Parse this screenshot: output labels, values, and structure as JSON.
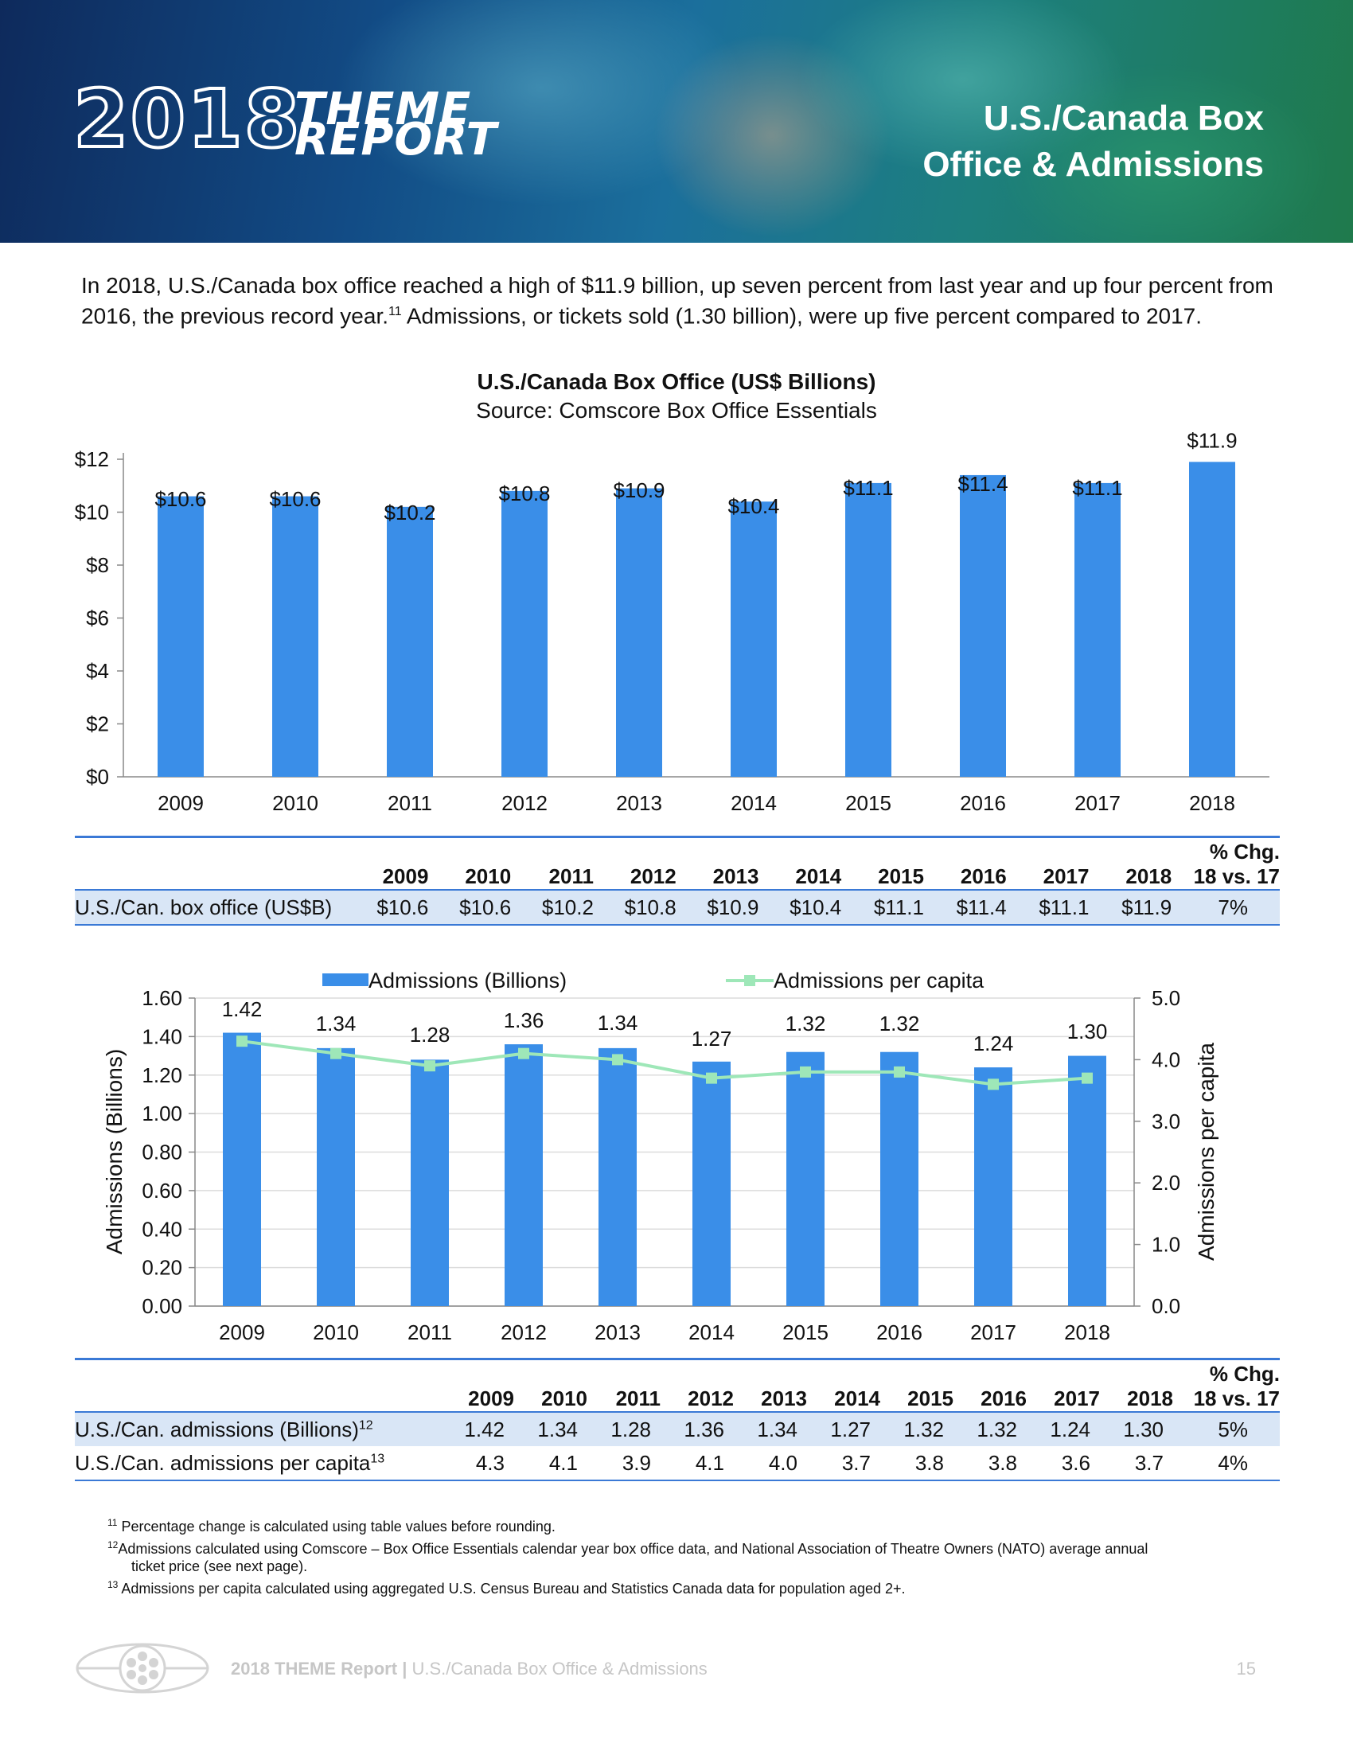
{
  "header": {
    "logo_year": "2018",
    "logo_word1": "THEME",
    "logo_word2": "REPORT",
    "title_line1": "U.S./Canada Box",
    "title_line2": "Office & Admissions"
  },
  "intro": {
    "text_a": "In 2018, U.S./Canada box office reached a high of $11.9 billion, up seven percent from last year and up four percent from 2016, the previous record year.",
    "sup": "11",
    "text_b": " Admissions, or tickets sold (1.30 billion), were up five percent compared to 2017."
  },
  "colors": {
    "bar": "#3a8ee8",
    "line": "#9ee7b8",
    "rule": "#3a79d6",
    "highlight": "#d9e6f6"
  },
  "chart_data": [
    {
      "type": "bar",
      "title": "U.S./Canada Box Office (US$ Billions)",
      "subtitle": "Source: Comscore Box Office Essentials",
      "categories": [
        "2009",
        "2010",
        "2011",
        "2012",
        "2013",
        "2014",
        "2015",
        "2016",
        "2017",
        "2018"
      ],
      "values": [
        10.6,
        10.6,
        10.2,
        10.8,
        10.9,
        10.4,
        11.1,
        11.4,
        11.1,
        11.9
      ],
      "data_labels": [
        "$10.6",
        "$10.6",
        "$10.2",
        "$10.8",
        "$10.9",
        "$10.4",
        "$11.1",
        "$11.4",
        "$11.1",
        "$11.9"
      ],
      "yticks": [
        "$0",
        "$2",
        "$4",
        "$6",
        "$8",
        "$10",
        "$12"
      ],
      "ylim": [
        0,
        12
      ],
      "xlabel": "",
      "ylabel": "",
      "grid": false
    },
    {
      "type": "bar+line",
      "title": "",
      "categories": [
        "2009",
        "2010",
        "2011",
        "2012",
        "2013",
        "2014",
        "2015",
        "2016",
        "2017",
        "2018"
      ],
      "series": [
        {
          "name": "Admissions (Billions)",
          "kind": "bar",
          "axis": "left",
          "values": [
            1.42,
            1.34,
            1.28,
            1.36,
            1.34,
            1.27,
            1.32,
            1.32,
            1.24,
            1.3
          ],
          "data_labels": [
            "1.42",
            "1.34",
            "1.28",
            "1.36",
            "1.34",
            "1.27",
            "1.32",
            "1.32",
            "1.24",
            "1.30"
          ]
        },
        {
          "name": "Admissions per capita",
          "kind": "line",
          "axis": "right",
          "values": [
            4.3,
            4.1,
            3.9,
            4.1,
            4.0,
            3.7,
            3.8,
            3.8,
            3.6,
            3.7
          ]
        }
      ],
      "yticks_left": [
        "0.00",
        "0.20",
        "0.40",
        "0.60",
        "0.80",
        "1.00",
        "1.20",
        "1.40",
        "1.60"
      ],
      "yticks_right": [
        "0.0",
        "1.0",
        "2.0",
        "3.0",
        "4.0",
        "5.0"
      ],
      "ylim_left": [
        0,
        1.6
      ],
      "ylim_right": [
        0,
        5.0
      ],
      "ylabel_left": "Admissions (Billions)",
      "ylabel_right": "Admissions per capita",
      "legend_position": "top",
      "grid": true
    }
  ],
  "table1": {
    "years": [
      "2009",
      "2010",
      "2011",
      "2012",
      "2013",
      "2014",
      "2015",
      "2016",
      "2017",
      "2018"
    ],
    "chg_line1": "% Chg.",
    "chg_line2": "18 vs. 17",
    "row_label": "U.S./Can. box office (US$B)",
    "values": [
      "$10.6",
      "$10.6",
      "$10.2",
      "$10.8",
      "$10.9",
      "$10.4",
      "$11.1",
      "$11.4",
      "$11.1",
      "$11.9"
    ],
    "chg": "7%"
  },
  "table2": {
    "years": [
      "2009",
      "2010",
      "2011",
      "2012",
      "2013",
      "2014",
      "2015",
      "2016",
      "2017",
      "2018"
    ],
    "chg_line1": "% Chg.",
    "chg_line2": "18 vs. 17",
    "row1_label": "U.S./Can. admissions (Billions)",
    "row1_sup": "12",
    "row1_values": [
      "1.42",
      "1.34",
      "1.28",
      "1.36",
      "1.34",
      "1.27",
      "1.32",
      "1.32",
      "1.24",
      "1.30"
    ],
    "row1_chg": "5%",
    "row2_label": "U.S./Can. admissions per capita",
    "row2_sup": "13",
    "row2_values": [
      "4.3",
      "4.1",
      "3.9",
      "4.1",
      "4.0",
      "3.7",
      "3.8",
      "3.8",
      "3.6",
      "3.7"
    ],
    "row2_chg": "4%"
  },
  "footnotes": {
    "f11_num": "11",
    "f11": "Percentage change is calculated using table values before rounding.",
    "f12_num": "12",
    "f12_a": "Admissions calculated using Comscore – Box Office Essentials calendar year box office data, and National Association of Theatre Owners (NATO) average annual",
    "f12_b": "ticket price (see next page).",
    "f13_num": "13",
    "f13": "Admissions per capita calculated using aggregated U.S. Census Bureau and Statistics Canada data for population aged 2+."
  },
  "footer": {
    "report_name": "2018 THEME Report",
    "separator": "|",
    "section": "U.S./Canada Box Office & Admissions",
    "page": "15"
  }
}
